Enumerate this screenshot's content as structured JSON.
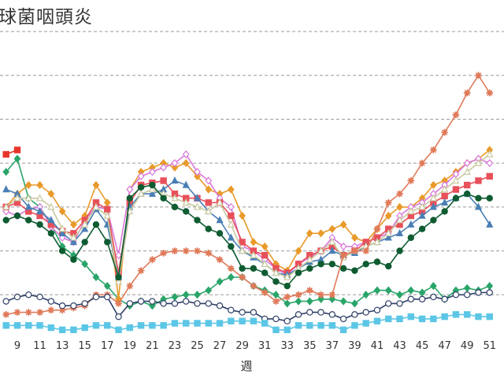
{
  "chart_data": {
    "type": "line",
    "title": "球菌咽頭炎",
    "xlabel": "週",
    "ylabel": "",
    "grid": true,
    "x_tick_labels": [
      "9",
      "11",
      "13",
      "15",
      "17",
      "19",
      "21",
      "23",
      "25",
      "27",
      "29",
      "31",
      "33",
      "35",
      "37",
      "39",
      "41",
      "43",
      "45",
      "47",
      "49",
      "51"
    ],
    "x": [
      8,
      9,
      10,
      11,
      12,
      13,
      14,
      15,
      16,
      17,
      18,
      19,
      20,
      21,
      22,
      23,
      24,
      25,
      26,
      27,
      28,
      29,
      30,
      31,
      32,
      33,
      34,
      35,
      36,
      37,
      38,
      39,
      40,
      41,
      42,
      43,
      44,
      45,
      46,
      47,
      48,
      49,
      50,
      51
    ],
    "ylim": [
      0,
      7
    ],
    "series": [
      {
        "color": "#e8352a",
        "marker": "square",
        "values": [
          4.2,
          4.3,
          null,
          null,
          null,
          null,
          null,
          null,
          null,
          null,
          null,
          null,
          null,
          null,
          null,
          null,
          null,
          null,
          null,
          null,
          null,
          null,
          null,
          null,
          null,
          null,
          null,
          null,
          null,
          null,
          null,
          null,
          null,
          null,
          null,
          null,
          null,
          null,
          null,
          null,
          null,
          null,
          null,
          null
        ]
      },
      {
        "color": "#2aa56a",
        "marker": "diamond",
        "values": [
          3.8,
          4.1,
          3.2,
          3.0,
          2.6,
          2.1,
          1.9,
          1.7,
          1.4,
          1.2,
          0.9,
          0.75,
          0.85,
          0.75,
          0.9,
          0.95,
          1.0,
          1.0,
          1.1,
          1.3,
          1.4,
          1.4,
          1.2,
          1.1,
          1.0,
          0.8,
          0.85,
          0.85,
          0.9,
          0.9,
          0.85,
          0.8,
          1.0,
          1.1,
          1.1,
          1.0,
          1.1,
          1.05,
          1.2,
          0.9,
          1.1,
          1.15,
          1.1,
          1.2
        ]
      },
      {
        "color": "#e89a2a",
        "marker": "diamond",
        "values": [
          3.0,
          3.3,
          3.5,
          3.5,
          3.3,
          2.9,
          2.6,
          2.8,
          3.5,
          3.1,
          0.9,
          3.4,
          3.8,
          3.9,
          4.0,
          3.9,
          4.0,
          3.7,
          3.4,
          3.3,
          3.4,
          2.8,
          2.2,
          2.1,
          1.7,
          1.55,
          2.0,
          2.4,
          2.4,
          2.5,
          2.6,
          2.3,
          2.2,
          2.5,
          2.8,
          3.0,
          3.0,
          3.2,
          3.5,
          3.6,
          3.8,
          4.0,
          4.1,
          4.3
        ]
      },
      {
        "color": "#d978d9",
        "marker": "diamond-open",
        "values": [
          2.9,
          2.8,
          2.95,
          3.0,
          2.55,
          2.3,
          2.2,
          2.7,
          3.0,
          2.95,
          1.9,
          3.4,
          3.7,
          3.8,
          3.9,
          4.0,
          4.2,
          3.8,
          3.6,
          3.2,
          3.0,
          2.1,
          2.0,
          1.8,
          1.6,
          1.45,
          1.7,
          1.85,
          2.0,
          2.3,
          2.1,
          2.1,
          2.2,
          2.3,
          2.4,
          2.8,
          3.0,
          3.1,
          3.3,
          3.5,
          3.75,
          4.0,
          4.1,
          4.0
        ]
      },
      {
        "color": "#e8505a",
        "marker": "square",
        "values": [
          3.0,
          3.1,
          2.9,
          2.8,
          2.6,
          2.45,
          2.4,
          2.7,
          3.1,
          2.95,
          1.5,
          3.1,
          3.5,
          3.55,
          3.6,
          3.3,
          3.2,
          3.2,
          3.1,
          3.1,
          2.8,
          2.2,
          2.0,
          1.9,
          1.6,
          1.5,
          1.7,
          1.9,
          2.0,
          2.1,
          1.9,
          2.0,
          2.2,
          2.3,
          2.5,
          2.6,
          2.8,
          2.9,
          3.1,
          3.25,
          3.4,
          3.5,
          3.6,
          3.7
        ]
      },
      {
        "color": "#4a7fb5",
        "marker": "triangle",
        "values": [
          3.4,
          3.3,
          3.0,
          2.9,
          2.7,
          2.4,
          2.2,
          2.5,
          2.95,
          2.6,
          1.4,
          3.0,
          3.3,
          3.3,
          3.4,
          3.6,
          3.5,
          3.2,
          2.9,
          2.7,
          2.3,
          2.0,
          1.85,
          1.7,
          1.5,
          1.45,
          1.6,
          1.75,
          1.8,
          2.0,
          1.9,
          1.95,
          2.1,
          2.2,
          2.3,
          2.4,
          2.6,
          2.8,
          3.0,
          3.1,
          3.2,
          3.3,
          3.0,
          2.6
        ]
      },
      {
        "color": "#c9c9a0",
        "marker": "triangle-open",
        "values": [
          3.0,
          3.2,
          3.2,
          3.2,
          3.0,
          2.5,
          2.3,
          2.6,
          3.0,
          2.8,
          1.3,
          2.9,
          3.3,
          3.4,
          3.3,
          3.2,
          3.1,
          3.0,
          2.9,
          3.1,
          2.6,
          2.0,
          1.9,
          1.7,
          1.5,
          1.4,
          1.6,
          1.8,
          2.0,
          2.2,
          1.85,
          2.0,
          2.1,
          2.2,
          2.4,
          2.7,
          2.9,
          3.0,
          3.2,
          3.4,
          3.6,
          3.8,
          4.0,
          4.2
        ]
      },
      {
        "color": "#0f5c32",
        "marker": "circle",
        "values": [
          2.7,
          2.8,
          2.7,
          2.6,
          2.4,
          2.0,
          1.8,
          2.2,
          2.6,
          2.2,
          1.4,
          3.2,
          3.45,
          3.5,
          3.2,
          3.0,
          2.9,
          2.7,
          2.5,
          2.4,
          2.1,
          1.6,
          1.6,
          1.5,
          1.3,
          1.2,
          1.5,
          1.6,
          1.7,
          1.7,
          1.6,
          1.55,
          1.7,
          1.75,
          1.65,
          2.0,
          2.3,
          2.5,
          2.7,
          2.9,
          3.2,
          3.3,
          3.2,
          3.2
        ]
      },
      {
        "color": "#e07a5a",
        "marker": "star",
        "values": [
          0.55,
          0.6,
          0.6,
          0.6,
          0.65,
          0.65,
          0.7,
          0.75,
          1.0,
          1.0,
          0.8,
          1.2,
          1.55,
          1.8,
          1.95,
          2.0,
          2.0,
          2.0,
          1.95,
          1.8,
          1.6,
          1.4,
          1.2,
          1.05,
          0.85,
          0.95,
          1.0,
          1.1,
          1.0,
          1.0,
          1.9,
          2.0,
          2.0,
          2.5,
          3.1,
          3.3,
          3.6,
          4.0,
          4.3,
          4.7,
          5.1,
          5.6,
          6.0,
          5.6
        ]
      },
      {
        "color": "#2e3e66",
        "marker": "circle-open",
        "values": [
          0.85,
          0.95,
          1.0,
          0.95,
          0.85,
          0.75,
          0.75,
          0.8,
          0.95,
          0.95,
          0.5,
          0.8,
          0.85,
          0.85,
          0.8,
          0.8,
          0.85,
          0.8,
          0.8,
          0.75,
          0.65,
          0.6,
          0.6,
          0.45,
          0.45,
          0.4,
          0.55,
          0.6,
          0.6,
          0.55,
          0.45,
          0.55,
          0.6,
          0.65,
          0.8,
          0.8,
          0.9,
          0.9,
          0.95,
          0.9,
          1.0,
          1.0,
          1.05,
          1.05
        ]
      },
      {
        "color": "#5cc6e6",
        "marker": "square",
        "values": [
          0.3,
          0.3,
          0.3,
          0.3,
          0.25,
          0.2,
          0.2,
          0.25,
          0.3,
          0.3,
          0.2,
          0.25,
          0.3,
          0.3,
          0.3,
          0.35,
          0.35,
          0.35,
          0.35,
          0.35,
          0.4,
          0.4,
          0.4,
          0.35,
          0.2,
          0.2,
          0.3,
          0.3,
          0.3,
          0.3,
          0.2,
          0.3,
          0.35,
          0.4,
          0.45,
          0.45,
          0.5,
          0.45,
          0.45,
          0.5,
          0.55,
          0.55,
          0.5,
          0.5
        ]
      }
    ]
  }
}
